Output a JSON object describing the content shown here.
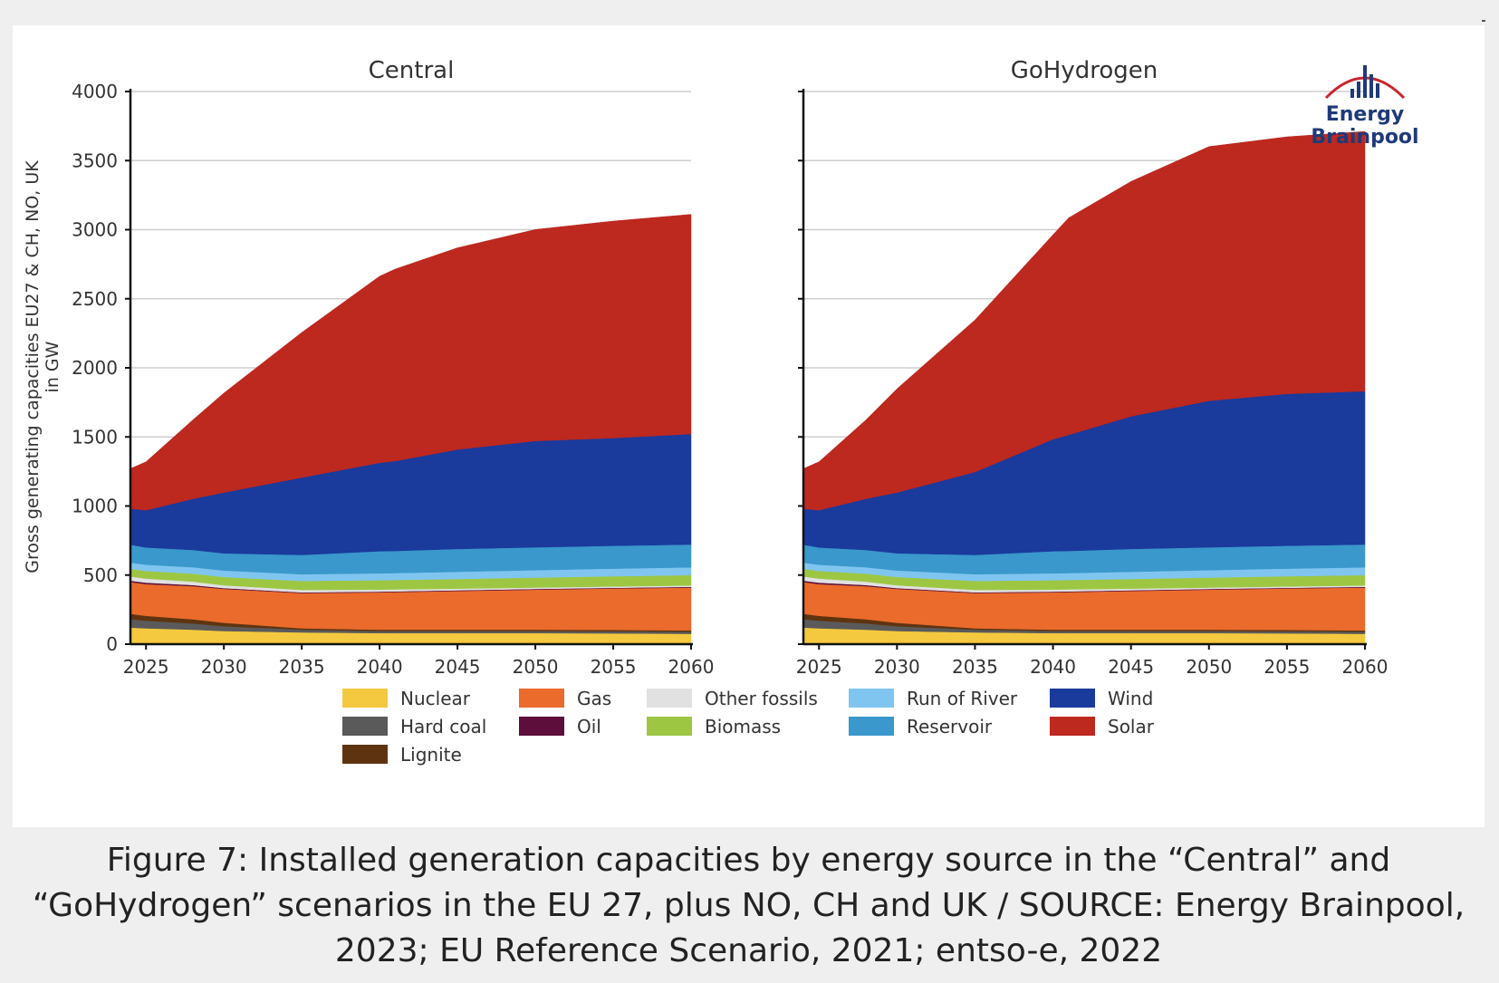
{
  "caption": "Figure 7: Installed generation capacities by energy source in the “Central” and “GoHydrogen” scenarios in the EU 27, plus NO, CH and UK / SOURCE: Energy Brainpool, 2023; EU Reference Scenario, 2021; entso-e, 2022",
  "logo": {
    "text": "Energy Brainpool",
    "colors": {
      "text": "#1f3a7a",
      "roof": "#c8262c",
      "bars": "#1f3a7a"
    }
  },
  "colors": {
    "Nuclear": "#f5c93f",
    "Hard coal": "#5a5a5a",
    "Lignite": "#5e3410",
    "Gas": "#ea6b2c",
    "Oil": "#5d0e3a",
    "Other fossils": "#e1e1e1",
    "Biomass": "#9dc743",
    "Run of River": "#7fc5f0",
    "Reservoir": "#3a98cc",
    "Wind": "#1a3a9c",
    "Solar": "#bd281f"
  },
  "chart_data": [
    {
      "type": "area",
      "stacked": true,
      "title": "Central",
      "xlabel": "",
      "ylabel": "Gross generating capacities EU27 & CH, NO, UK in GW",
      "xlim": [
        2024,
        2060
      ],
      "ylim": [
        0,
        4000
      ],
      "xticks": [
        2025,
        2030,
        2035,
        2040,
        2045,
        2050,
        2055,
        2060
      ],
      "yticks": [
        0,
        500,
        1000,
        1500,
        2000,
        2500,
        3000,
        3500,
        4000
      ],
      "grid": true,
      "x": [
        2024,
        2025,
        2028,
        2030,
        2035,
        2040,
        2041,
        2045,
        2050,
        2055,
        2060
      ],
      "series": [
        {
          "name": "Nuclear",
          "values": [
            120,
            115,
            105,
            95,
            85,
            80,
            80,
            80,
            80,
            78,
            75
          ]
        },
        {
          "name": "Hard coal",
          "values": [
            60,
            55,
            45,
            35,
            20,
            15,
            15,
            15,
            15,
            15,
            15
          ]
        },
        {
          "name": "Lignite",
          "values": [
            40,
            35,
            30,
            25,
            10,
            10,
            10,
            10,
            10,
            10,
            10
          ]
        },
        {
          "name": "Gas",
          "values": [
            230,
            230,
            240,
            245,
            255,
            270,
            272,
            280,
            290,
            300,
            310
          ]
        },
        {
          "name": "Oil",
          "values": [
            10,
            10,
            8,
            6,
            5,
            5,
            5,
            5,
            5,
            5,
            5
          ]
        },
        {
          "name": "Other fossils",
          "values": [
            30,
            30,
            25,
            20,
            18,
            15,
            15,
            12,
            10,
            10,
            10
          ]
        },
        {
          "name": "Biomass",
          "values": [
            55,
            55,
            58,
            60,
            65,
            68,
            68,
            70,
            72,
            74,
            75
          ]
        },
        {
          "name": "Run of River",
          "values": [
            45,
            45,
            46,
            47,
            48,
            50,
            50,
            52,
            54,
            55,
            56
          ]
        },
        {
          "name": "Reservoir",
          "values": [
            130,
            125,
            125,
            125,
            140,
            160,
            160,
            165,
            165,
            165,
            165
          ]
        },
        {
          "name": "Wind",
          "values": [
            260,
            270,
            370,
            440,
            560,
            640,
            650,
            720,
            770,
            780,
            800
          ]
        },
        {
          "name": "Solar",
          "values": [
            290,
            350,
            570,
            720,
            1050,
            1350,
            1390,
            1460,
            1530,
            1570,
            1590
          ]
        }
      ]
    },
    {
      "type": "area",
      "stacked": true,
      "title": "GoHydrogen",
      "xlabel": "",
      "ylabel": "",
      "xlim": [
        2024,
        2060
      ],
      "ylim": [
        0,
        4000
      ],
      "xticks": [
        2025,
        2030,
        2035,
        2040,
        2045,
        2050,
        2055,
        2060
      ],
      "yticks": [
        0,
        500,
        1000,
        1500,
        2000,
        2500,
        3000,
        3500,
        4000
      ],
      "grid": true,
      "x": [
        2024,
        2025,
        2028,
        2030,
        2035,
        2040,
        2041,
        2045,
        2050,
        2055,
        2060
      ],
      "series": [
        {
          "name": "Nuclear",
          "values": [
            120,
            115,
            105,
            95,
            85,
            80,
            80,
            80,
            80,
            78,
            75
          ]
        },
        {
          "name": "Hard coal",
          "values": [
            60,
            55,
            45,
            35,
            20,
            15,
            15,
            15,
            15,
            15,
            15
          ]
        },
        {
          "name": "Lignite",
          "values": [
            40,
            35,
            30,
            25,
            10,
            10,
            10,
            10,
            10,
            10,
            10
          ]
        },
        {
          "name": "Gas",
          "values": [
            230,
            230,
            240,
            245,
            255,
            270,
            272,
            280,
            290,
            300,
            310
          ]
        },
        {
          "name": "Oil",
          "values": [
            10,
            10,
            8,
            6,
            5,
            5,
            5,
            5,
            5,
            5,
            5
          ]
        },
        {
          "name": "Other fossils",
          "values": [
            30,
            30,
            25,
            20,
            18,
            15,
            15,
            12,
            10,
            10,
            10
          ]
        },
        {
          "name": "Biomass",
          "values": [
            55,
            55,
            58,
            60,
            65,
            68,
            68,
            70,
            72,
            74,
            75
          ]
        },
        {
          "name": "Run of River",
          "values": [
            45,
            45,
            46,
            47,
            48,
            50,
            50,
            52,
            54,
            55,
            56
          ]
        },
        {
          "name": "Reservoir",
          "values": [
            130,
            125,
            125,
            125,
            140,
            160,
            160,
            165,
            165,
            165,
            165
          ]
        },
        {
          "name": "Wind",
          "values": [
            260,
            270,
            370,
            440,
            600,
            810,
            840,
            960,
            1060,
            1100,
            1110
          ]
        },
        {
          "name": "Solar",
          "values": [
            290,
            350,
            570,
            750,
            1100,
            1480,
            1570,
            1700,
            1840,
            1860,
            1880
          ]
        }
      ]
    }
  ],
  "legend": {
    "columns": [
      [
        "Nuclear",
        "Hard coal",
        "Lignite"
      ],
      [
        "Gas",
        "Oil"
      ],
      [
        "Other fossils",
        "Biomass"
      ],
      [
        "Run of River",
        "Reservoir"
      ],
      [
        "Wind",
        "Solar"
      ]
    ]
  }
}
